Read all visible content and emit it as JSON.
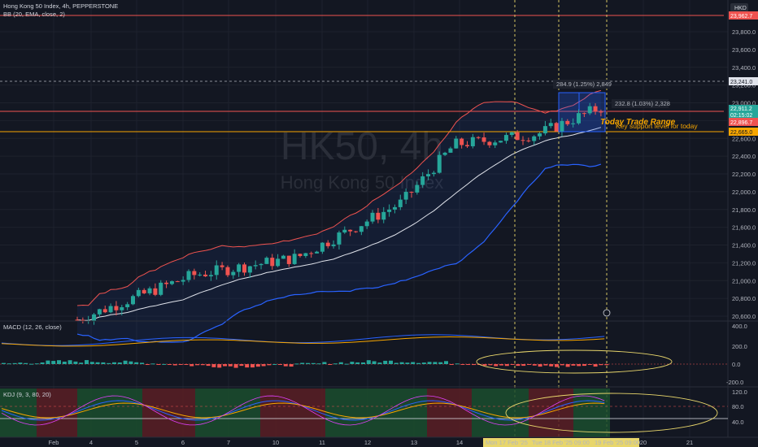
{
  "header": {
    "symbol_line": "Hong Kong 50 Index, 4h, PEPPERSTONE",
    "bb_line": "BB (20, EMA, close, 2)",
    "currency": "HKD"
  },
  "watermark": {
    "big": "HK50, 4h",
    "sub": "Hong Kong 50 Index"
  },
  "price_axis": {
    "ticks": [
      "23,800.0",
      "23,600.0",
      "23,400.0",
      "23,200.0",
      "23,000.0",
      "22,800.0",
      "22,600.0",
      "22,400.0",
      "22,200.0",
      "22,000.0",
      "21,800.0",
      "21,600.0",
      "21,400.0",
      "21,200.0",
      "21,000.0",
      "20,800.0",
      "20,600.0"
    ],
    "tags": {
      "top": "23,962.7",
      "level_high": "23,241.0",
      "last_price": "22,911.2",
      "countdown": "02:15:02",
      "red_level": "22,896.7",
      "support": "22,665.0"
    }
  },
  "annotations": {
    "measure_1": "284.9 (1.25%) 2,849",
    "measure_2": "232.8 (1.03%) 2,328",
    "trade_range": "Today Trade Range",
    "support_label": "Key support level for today"
  },
  "macd": {
    "legend": "MACD (12, 26, close)",
    "ticks": [
      "400.0",
      "200.0",
      "0.0",
      "-200.0"
    ]
  },
  "kdj": {
    "legend": "KDJ (9, 3, 80, 20)",
    "ticks": [
      "120.0",
      "80.0",
      "40.0"
    ]
  },
  "time_axis": {
    "labels": [
      "Feb",
      "4",
      "5",
      "6",
      "7",
      "10",
      "11",
      "12",
      "13",
      "14",
      "20",
      "21"
    ],
    "highlight": [
      "Mon 17 Feb '25",
      "Tue 18 Feb '25  09:00",
      "19 Feb '25  09:00"
    ]
  },
  "colors": {
    "up": "#26a69a",
    "down": "#ef5350",
    "bb_upper": "#ef5350",
    "bb_mid": "#e0e3eb",
    "bb_lower": "#2962ff",
    "support": "#f7a600",
    "highlight": "#e8d66b"
  }
}
